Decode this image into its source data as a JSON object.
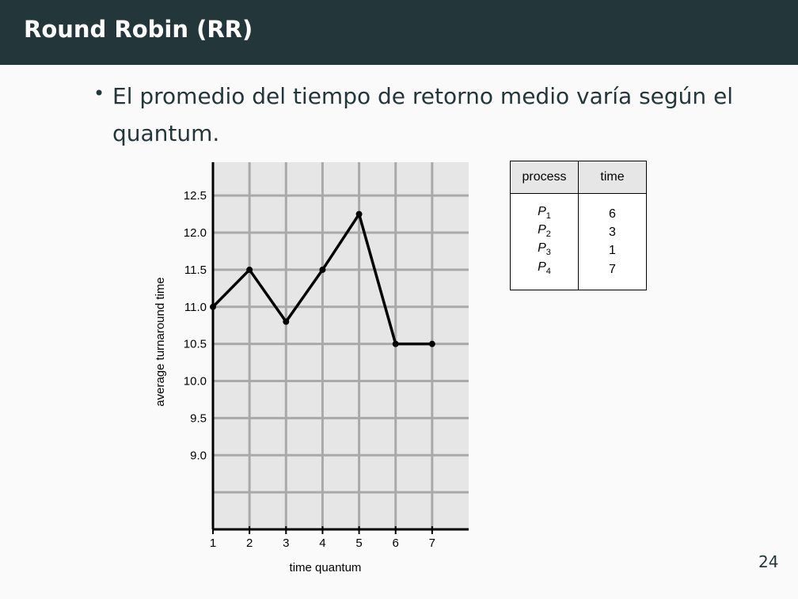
{
  "slide": {
    "title": "Round Robin (RR)",
    "bullet": "El promedio del tiempo de retorno medio varía según el quantum.",
    "page_number": "24"
  },
  "colors": {
    "header_bg": "#23373b",
    "plot_bg": "#e6e6e6",
    "grid": "#a9a9a9",
    "line": "#000000"
  },
  "table": {
    "headers": [
      "process",
      "time"
    ],
    "rows": [
      {
        "p": "P",
        "sub": "1",
        "time": "6"
      },
      {
        "p": "P",
        "sub": "2",
        "time": "3"
      },
      {
        "p": "P",
        "sub": "3",
        "time": "1"
      },
      {
        "p": "P",
        "sub": "4",
        "time": "7"
      }
    ]
  },
  "chart_data": {
    "type": "line",
    "xlabel": "time quantum",
    "ylabel": "average turnaround time",
    "x": [
      1,
      2,
      3,
      4,
      5,
      6,
      7
    ],
    "values": [
      11.0,
      11.5,
      10.8,
      11.5,
      12.25,
      10.5,
      10.5
    ],
    "xlim": [
      1,
      8
    ],
    "ylim": [
      8.0,
      12.95
    ],
    "xticks": [
      "1",
      "2",
      "3",
      "4",
      "5",
      "6",
      "7"
    ],
    "yticks": [
      9.0,
      9.5,
      10.0,
      10.5,
      11.0,
      11.5,
      12.0,
      12.5
    ],
    "ytick_labels": [
      "9.0",
      "9.5",
      "10.0",
      "10.5",
      "11.0",
      "11.5",
      "12.0",
      "12.5"
    ],
    "grid": true,
    "markers": true
  }
}
